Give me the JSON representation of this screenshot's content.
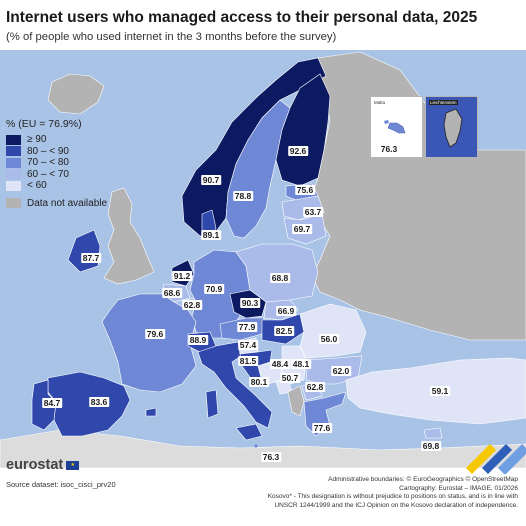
{
  "title": "Internet users who managed access to their personal data, 2025",
  "subtitle": "(% of people who used internet in the 3 months before the survey)",
  "legend": {
    "title": "% (EU = 76.9%)",
    "classes": [
      {
        "label": "≥ 90",
        "color": "#0c1a62"
      },
      {
        "label": "80 – < 90",
        "color": "#3048ac"
      },
      {
        "label": "70 – < 80",
        "color": "#6f88d6"
      },
      {
        "label": "60 – < 70",
        "color": "#aabbea"
      },
      {
        "label": "< 60",
        "color": "#dfe5f6"
      }
    ],
    "not_available": {
      "label": "Data not available",
      "color": "#b3b3b3"
    }
  },
  "chart_data": {
    "type": "choropleth",
    "eu_average": 76.9,
    "values": [
      {
        "country": "Iceland",
        "value": null
      },
      {
        "country": "Norway",
        "value": 90.7
      },
      {
        "country": "Sweden",
        "value": 78.8
      },
      {
        "country": "Finland",
        "value": 92.6
      },
      {
        "country": "Estonia",
        "value": 75.6
      },
      {
        "country": "Latvia",
        "value": 63.7
      },
      {
        "country": "Lithuania",
        "value": 69.7
      },
      {
        "country": "Denmark",
        "value": 89.1
      },
      {
        "country": "Ireland",
        "value": 87.7
      },
      {
        "country": "United Kingdom",
        "value": null
      },
      {
        "country": "Netherlands",
        "value": 91.2
      },
      {
        "country": "Belgium",
        "value": 68.6
      },
      {
        "country": "Luxembourg",
        "value": 62.8
      },
      {
        "country": "Germany",
        "value": 70.9
      },
      {
        "country": "Poland",
        "value": 68.8
      },
      {
        "country": "Czechia",
        "value": 90.3
      },
      {
        "country": "Slovakia",
        "value": 66.9
      },
      {
        "country": "Austria",
        "value": 77.9
      },
      {
        "country": "Hungary",
        "value": 82.5
      },
      {
        "country": "France",
        "value": 79.6
      },
      {
        "country": "Switzerland",
        "value": 88.9
      },
      {
        "country": "Italy",
        "value": 80.1
      },
      {
        "country": "Slovenia",
        "value": 57.4
      },
      {
        "country": "Croatia",
        "value": 81.5
      },
      {
        "country": "Bosnia and Herzegovina",
        "value": 48.4
      },
      {
        "country": "Serbia",
        "value": 48.1
      },
      {
        "country": "Montenegro",
        "value": 50.7
      },
      {
        "country": "North Macedonia",
        "value": 62.8
      },
      {
        "country": "Romania",
        "value": 56.0
      },
      {
        "country": "Bulgaria",
        "value": 62.0
      },
      {
        "country": "Greece",
        "value": 77.6
      },
      {
        "country": "Türkiye",
        "value": 59.1
      },
      {
        "country": "Cyprus",
        "value": 69.8
      },
      {
        "country": "Spain",
        "value": 83.6
      },
      {
        "country": "Portugal",
        "value": 84.7
      },
      {
        "country": "Malta",
        "value": 76.3
      },
      {
        "country": "Liechtenstein",
        "value": null
      }
    ]
  },
  "insets": {
    "malta": {
      "caption": "Malta",
      "value": "76.3"
    },
    "liechtenstein": {
      "caption": "Liechtenstein"
    }
  },
  "footer": {
    "brand": "eurostat",
    "source": "Source dataset: isoc_cisci_prv20",
    "credits": [
      "Administrative boundaries: © EuroGeographics © OpenStreetMap",
      "Cartography: Eurostat – IMAGE, 01/2026",
      "Kosovo* - This designation is without prejudice to positions on status, and is in line with",
      "UNSCR 1244/1999 and the ICJ Opinion on the Kosovo declaration of independence."
    ]
  }
}
